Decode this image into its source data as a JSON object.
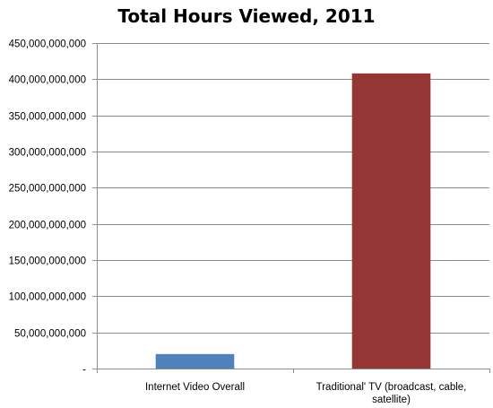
{
  "chart_data": {
    "type": "bar",
    "title": "Total Hours Viewed, 2011",
    "xlabel": "",
    "ylabel": "",
    "categories": [
      "Internet Video Overall",
      "Traditional' TV (broadcast, cable, satellite)"
    ],
    "category_lines": [
      [
        "Internet Video Overall"
      ],
      [
        "Traditional' TV (broadcast, cable,",
        "satellite)"
      ]
    ],
    "values": [
      20000000000,
      408000000000
    ],
    "colors": [
      "#4F81BD",
      "#943634"
    ],
    "ylim": [
      0,
      450000000000
    ],
    "yticks": [
      0,
      50000000000,
      100000000000,
      150000000000,
      200000000000,
      250000000000,
      300000000000,
      350000000000,
      400000000000,
      450000000000
    ],
    "ytick_labels": [
      "-",
      "50,000,000,000",
      "100,000,000,000",
      "150,000,000,000",
      "200,000,000,000",
      "250,000,000,000",
      "300,000,000,000",
      "350,000,000,000",
      "400,000,000,000",
      "450,000,000,000"
    ],
    "grid": true,
    "legend": "none"
  }
}
